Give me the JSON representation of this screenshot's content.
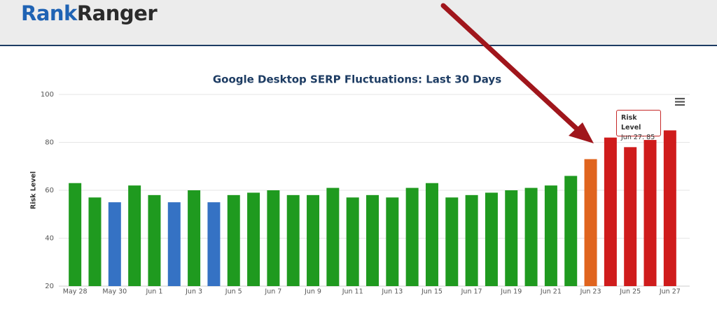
{
  "header": {
    "logo": [
      "Rank",
      "Ranger"
    ]
  },
  "chart_data": {
    "type": "bar",
    "title": "Google Desktop SERP Fluctuations: Last 30 Days",
    "y_label": "Risk Level",
    "categories": [
      "May 28",
      null,
      "May 30",
      null,
      "Jun 1",
      null,
      "Jun 3",
      null,
      "Jun 5",
      null,
      "Jun 7",
      null,
      "Jun 9",
      null,
      "Jun 11",
      null,
      "Jun 13",
      null,
      "Jun 15",
      null,
      "Jun 17",
      null,
      "Jun 19",
      null,
      "Jun 21",
      null,
      "Jun 23",
      null,
      "Jun 25",
      null,
      "Jun 27"
    ],
    "values": [
      63,
      57,
      55,
      62,
      58,
      55,
      60,
      55,
      58,
      59,
      60,
      58,
      58,
      61,
      57,
      58,
      57,
      61,
      63,
      57,
      58,
      59,
      60,
      61,
      62,
      66,
      73,
      82,
      78,
      81,
      85
    ],
    "colors": [
      "#1f9a1f",
      "#1f9a1f",
      "#3572c4",
      "#1f9a1f",
      "#1f9a1f",
      "#3572c4",
      "#1f9a1f",
      "#3572c4",
      "#1f9a1f",
      "#1f9a1f",
      "#1f9a1f",
      "#1f9a1f",
      "#1f9a1f",
      "#1f9a1f",
      "#1f9a1f",
      "#1f9a1f",
      "#1f9a1f",
      "#1f9a1f",
      "#1f9a1f",
      "#1f9a1f",
      "#1f9a1f",
      "#1f9a1f",
      "#1f9a1f",
      "#1f9a1f",
      "#1f9a1f",
      "#1f9a1f",
      "#e0641e",
      "#cf1c1c",
      "#cf1c1c",
      "#cf1c1c",
      "#cf1c1c"
    ],
    "ylim": [
      20,
      100
    ],
    "yticks": [
      20,
      40,
      60,
      80,
      100
    ],
    "grid": true,
    "tooltip": {
      "title": "Risk Level",
      "text": "Jun 27: 85"
    }
  }
}
